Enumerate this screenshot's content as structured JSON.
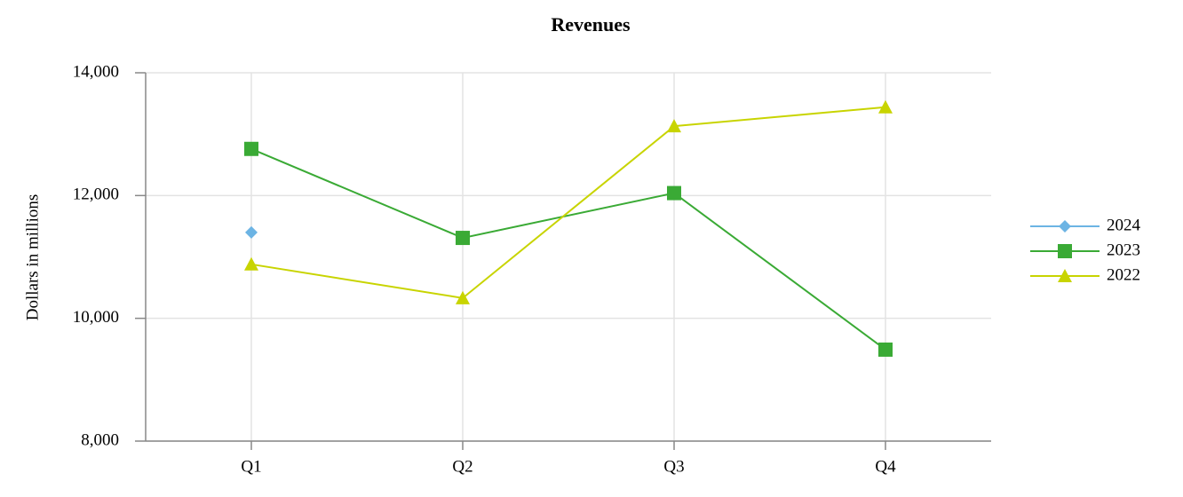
{
  "chart_data": {
    "type": "line",
    "title": "Revenues",
    "y_label": "Dollars in millions",
    "categories": [
      "Q1",
      "Q2",
      "Q3",
      "Q4"
    ],
    "series": [
      {
        "name": "2024",
        "color": "#6cb4e4",
        "marker": "diamond",
        "values": [
          11400,
          null,
          null,
          null
        ]
      },
      {
        "name": "2023",
        "color": "#3aaa35",
        "marker": "square",
        "values": [
          12760,
          11310,
          12040,
          9490
        ]
      },
      {
        "name": "2022",
        "color": "#c8d400",
        "marker": "triangle",
        "values": [
          10880,
          10330,
          13130,
          13440
        ]
      }
    ],
    "ylim": [
      8000,
      14000
    ],
    "yticks": [
      {
        "value": 8000,
        "label": "8,000"
      },
      {
        "value": 10000,
        "label": "10,000"
      },
      {
        "value": 12000,
        "label": "12,000"
      },
      {
        "value": 14000,
        "label": "14,000"
      }
    ],
    "grid": true,
    "legend": "right"
  }
}
